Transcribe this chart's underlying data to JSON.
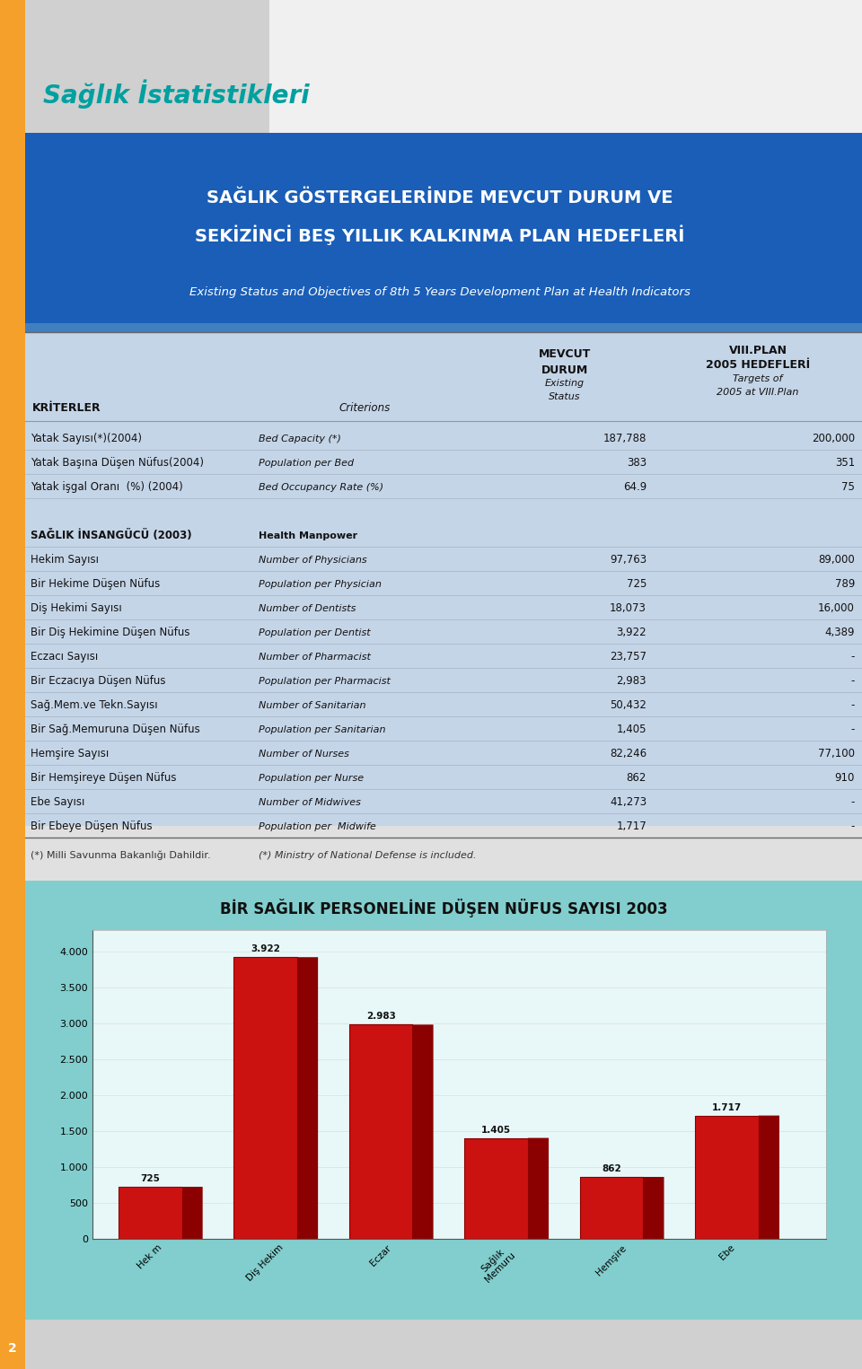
{
  "header_title1": "SAĞLIK GÖSTERGELERİNDE MEVCUT DURUM VE",
  "header_title2": "SEKİZİNCİ BEŞ YILLIK KALKINMA PLAN HEDEFLERİ",
  "header_subtitle": "Existing Status and Objectives of 8th 5 Years Development Plan at Health Indicators",
  "col1_header": "KRİTERLER",
  "col2_header": "Criterions",
  "rows": [
    [
      "Yatak Sayısı(*)(2004)",
      "Bed Capacity (*)",
      "187,788",
      "200,000"
    ],
    [
      "Yatak Başına Düşen Nüfus(2004)",
      "Population per Bed",
      "383",
      "351"
    ],
    [
      "Yatak işgal Oranı  (%) (2004)",
      "Bed Occupancy Rate (%)",
      "64.9",
      "75"
    ],
    [
      "",
      "",
      "",
      ""
    ],
    [
      "SAĞLIK İNSANGÜCÜ (2003)",
      "Health Manpower",
      "",
      ""
    ],
    [
      "Hekim Sayısı",
      "Number of Physicians",
      "97,763",
      "89,000"
    ],
    [
      "Bir Hekime Düşen Nüfus",
      "Population per Physician",
      "725",
      "789"
    ],
    [
      "Diş Hekimi Sayısı",
      "Number of Dentists",
      "18,073",
      "16,000"
    ],
    [
      "Bir Diş Hekimine Düşen Nüfus",
      "Population per Dentist",
      "3,922",
      "4,389"
    ],
    [
      "Eczacı Sayısı",
      "Number of Pharmacist",
      "23,757",
      "-"
    ],
    [
      "Bir Eczacıya Düşen Nüfus",
      "Population per Pharmacist",
      "2,983",
      "-"
    ],
    [
      "Sağ.Mem.ve Tekn.Sayısı",
      "Number of Sanitarian",
      "50,432",
      "-"
    ],
    [
      "Bir Sağ.Memuruna Düşen Nüfus",
      "Population per Sanitarian",
      "1,405",
      "-"
    ],
    [
      "Hemşire Sayısı",
      "Number of Nurses",
      "82,246",
      "77,100"
    ],
    [
      "Bir Hemşireye Düşen Nüfus",
      "Population per Nurse",
      "862",
      "910"
    ],
    [
      "Ebe Sayısı",
      "Number of Midwives",
      "41,273",
      "-"
    ],
    [
      "Bir Ebeye Düşen Nüfus",
      "Population per  Midwife",
      "1,717",
      "-"
    ]
  ],
  "footnote1": "(*) Milli Savunma Bakanlığı Dahildir.",
  "footnote2": "(*) Ministry of National Defense is included.",
  "chart_title": "BİR SAĞLIK PERSONELİNE DÜŞEN NÜFUS SAYISI 2003",
  "chart_bg": "#82cece",
  "chart_categories": [
    "Hek m",
    "Diş Hekim",
    "Eczar",
    "Sağlık\nMemuru",
    "Hemşire",
    "Ebe"
  ],
  "chart_values": [
    725,
    3922,
    2983,
    1405,
    862,
    1717
  ],
  "chart_value_labels": [
    "725",
    "3.922",
    "2.983",
    "1.405",
    "862",
    "1.717"
  ],
  "chart_yticks": [
    0,
    500,
    1000,
    1500,
    2000,
    2500,
    3000,
    3500,
    4000
  ],
  "page_number": "2",
  "orange_color": "#f5a02a",
  "blue_header_color": "#1a5eb8",
  "table_bg_color": "#c5d5e8",
  "teal_text_color": "#00a0a0",
  "bar_front_color": "#cc1111",
  "bar_right_color": "#8b0000",
  "bar_top_color": "#dd4444"
}
